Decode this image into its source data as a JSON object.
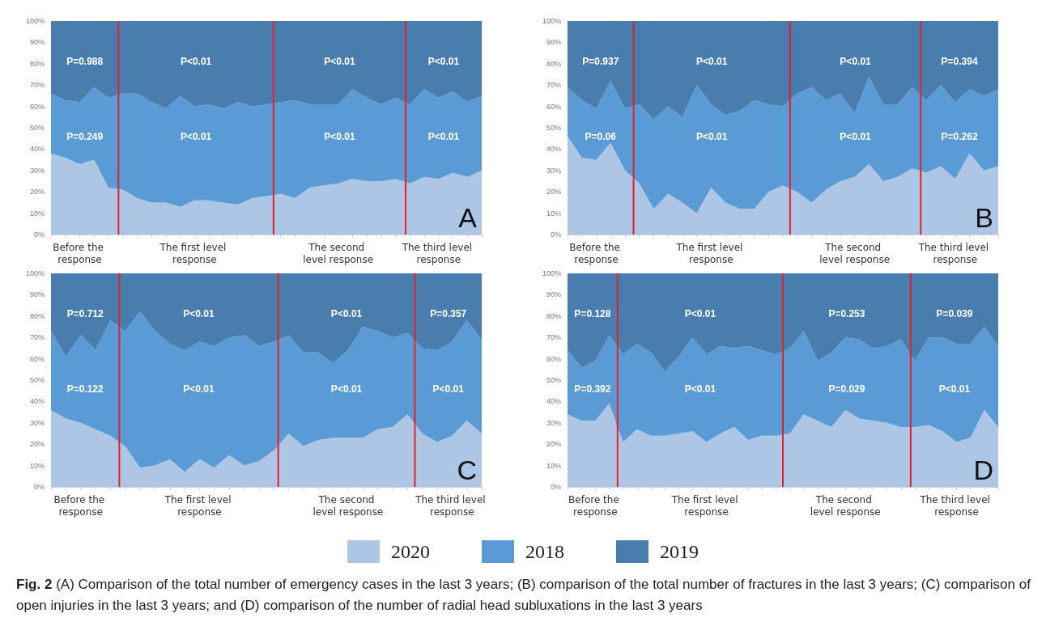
{
  "chart_data": [
    {
      "type": "area",
      "stacked": true,
      "marker": "none",
      "legend": "bottom",
      "categories": [
        null,
        null,
        "Before the response",
        null,
        null,
        null,
        null,
        null,
        null,
        null,
        "The first level response",
        null,
        null,
        null,
        null,
        null,
        null,
        null,
        null,
        null,
        "The second level response",
        null,
        null,
        null,
        null,
        null,
        null,
        "The third level response",
        null,
        null,
        null
      ],
      "ylim": [
        0,
        100
      ],
      "yticks": [
        {
          "value": 0,
          "label": "0%"
        },
        {
          "value": 10,
          "label": "10%"
        },
        {
          "value": 20,
          "label": "20%"
        },
        {
          "value": 30,
          "label": "30%"
        },
        {
          "value": 40,
          "label": "40%"
        },
        {
          "value": 50,
          "label": "50%"
        },
        {
          "value": 60,
          "label": "60%"
        },
        {
          "value": 70,
          "label": "70%"
        },
        {
          "value": 80,
          "label": "80%"
        },
        {
          "value": 90,
          "label": "90%"
        },
        {
          "value": 100,
          "label": "100%"
        }
      ],
      "series": [
        {
          "name": "2020",
          "color": "#aec6e6",
          "values": [
            38,
            36,
            33,
            35,
            22,
            21,
            17,
            15,
            15,
            13,
            16,
            16,
            15,
            14,
            17,
            18,
            19,
            17,
            22,
            23,
            24,
            26,
            25,
            25,
            26,
            24,
            27,
            26,
            29,
            27,
            30
          ]
        },
        {
          "name": "2018",
          "color": "#5b9bd5",
          "values": [
            28,
            27,
            29,
            34,
            42,
            45,
            49,
            47,
            44,
            52,
            44,
            45,
            44,
            48,
            43,
            43,
            43,
            46,
            39,
            38,
            37,
            42,
            39,
            36,
            38,
            37,
            41,
            38,
            38,
            35,
            35
          ]
        },
        {
          "name": "2019",
          "color": "#487dae",
          "values": [
            34,
            37,
            38,
            31,
            36,
            34,
            34,
            38,
            41,
            35,
            40,
            39,
            41,
            38,
            40,
            39,
            38,
            37,
            39,
            39,
            39,
            32,
            36,
            39,
            36,
            39,
            32,
            36,
            33,
            38,
            35
          ]
        }
      ],
      "annotations": [
        "A",
        "P=0.988",
        "P=0.249",
        "P<0.01",
        "P<0.01",
        "P<0.01",
        "P<0.01",
        "P<0.01",
        "P<0.01"
      ]
    },
    {
      "type": "area",
      "stacked": true,
      "marker": "none",
      "legend": "bottom",
      "categories": [
        null,
        null,
        "Before the response",
        null,
        null,
        null,
        null,
        null,
        null,
        null,
        "The first level response",
        null,
        null,
        null,
        null,
        null,
        null,
        null,
        null,
        null,
        "The second level response",
        null,
        null,
        null,
        null,
        null,
        null,
        "The third level response",
        null,
        null,
        null
      ],
      "ylim": [
        0,
        100
      ],
      "yticks": [
        {
          "value": 0,
          "label": "0%"
        },
        {
          "value": 10,
          "label": "10%"
        },
        {
          "value": 20,
          "label": "20%"
        },
        {
          "value": 30,
          "label": "30%"
        },
        {
          "value": 40,
          "label": "40%"
        },
        {
          "value": 50,
          "label": "50%"
        },
        {
          "value": 60,
          "label": "60%"
        },
        {
          "value": 70,
          "label": "70%"
        },
        {
          "value": 80,
          "label": "80%"
        },
        {
          "value": 90,
          "label": "90%"
        },
        {
          "value": 100,
          "label": "100%"
        }
      ],
      "series": [
        {
          "name": "2020",
          "color": "#aec6e6",
          "values": [
            46,
            36,
            35,
            43,
            30,
            24,
            12,
            19,
            15,
            10,
            22,
            15,
            12,
            12,
            20,
            23,
            20,
            15,
            21,
            25,
            27,
            33,
            25,
            27,
            31,
            29,
            32,
            26,
            38,
            30,
            32
          ]
        },
        {
          "name": "2018",
          "color": "#5b9bd5",
          "values": [
            23,
            27,
            24,
            29,
            29,
            37,
            42,
            41,
            40,
            60,
            39,
            41,
            46,
            51,
            41,
            37,
            46,
            54,
            42,
            41,
            30,
            41,
            36,
            34,
            38,
            34,
            38,
            36,
            30,
            35,
            36
          ]
        },
        {
          "name": "2019",
          "color": "#487dae",
          "values": [
            31,
            37,
            41,
            28,
            41,
            39,
            46,
            40,
            45,
            30,
            39,
            44,
            42,
            37,
            39,
            40,
            34,
            31,
            37,
            34,
            43,
            26,
            39,
            39,
            31,
            37,
            30,
            38,
            32,
            35,
            32
          ]
        }
      ],
      "annotations": [
        "B",
        "P=0.937",
        "P=0.06",
        "P<0.01",
        "P<0.01",
        "P<0.01",
        "P<0.01",
        "P=0.394",
        "P=0.262"
      ]
    },
    {
      "type": "area",
      "stacked": true,
      "marker": "none",
      "legend": "bottom",
      "categories": [
        null,
        null,
        "Before the response",
        null,
        null,
        null,
        null,
        null,
        null,
        null,
        "The first level response",
        null,
        null,
        null,
        null,
        null,
        null,
        null,
        null,
        null,
        "The second level response",
        null,
        null,
        null,
        null,
        null,
        null,
        "The third level response",
        null,
        null
      ],
      "ylim": [
        0,
        100
      ],
      "yticks": [
        {
          "value": 0,
          "label": "0%"
        },
        {
          "value": 10,
          "label": "10%"
        },
        {
          "value": 20,
          "label": "20%"
        },
        {
          "value": 30,
          "label": "30%"
        },
        {
          "value": 40,
          "label": "40%"
        },
        {
          "value": 50,
          "label": "50%"
        },
        {
          "value": 60,
          "label": "60%"
        },
        {
          "value": 70,
          "label": "70%"
        },
        {
          "value": 80,
          "label": "80%"
        },
        {
          "value": 90,
          "label": "90%"
        },
        {
          "value": 100,
          "label": "100%"
        }
      ],
      "series": [
        {
          "name": "2020",
          "color": "#aec6e6",
          "values": [
            36,
            32,
            30,
            27,
            24,
            19,
            9,
            10,
            13,
            7,
            13,
            9,
            15,
            10,
            12,
            17,
            25,
            19,
            22,
            23,
            23,
            23,
            27,
            28,
            34,
            25,
            21,
            24,
            31,
            25
          ]
        },
        {
          "name": "2018",
          "color": "#5b9bd5",
          "values": [
            37,
            29,
            41,
            37,
            54,
            54,
            73,
            63,
            54,
            57,
            55,
            57,
            55,
            61,
            54,
            51,
            46,
            44,
            41,
            35,
            41,
            52,
            46,
            42,
            38,
            40,
            43,
            44,
            47,
            44
          ]
        },
        {
          "name": "2019",
          "color": "#487dae",
          "values": [
            27,
            39,
            29,
            36,
            22,
            27,
            18,
            27,
            33,
            36,
            32,
            34,
            30,
            29,
            34,
            32,
            29,
            37,
            37,
            42,
            36,
            25,
            27,
            30,
            28,
            35,
            36,
            32,
            22,
            31
          ]
        }
      ],
      "annotations": [
        "C",
        "P=0.712",
        "P=0.122",
        "P<0.01",
        "P<0.01",
        "P<0.01",
        "P<0.01",
        "P=0.357",
        "P<0.01"
      ]
    },
    {
      "type": "area",
      "stacked": true,
      "marker": "none",
      "legend": "bottom",
      "categories": [
        null,
        null,
        "Before the response",
        null,
        null,
        null,
        null,
        null,
        null,
        null,
        "The first level response",
        null,
        null,
        null,
        null,
        null,
        null,
        null,
        null,
        null,
        "The second level response",
        null,
        null,
        null,
        null,
        null,
        null,
        null,
        "The third level response",
        null,
        null,
        null
      ],
      "ylim": [
        0,
        100
      ],
      "yticks": [
        {
          "value": 0,
          "label": "0%"
        },
        {
          "value": 10,
          "label": "10%"
        },
        {
          "value": 20,
          "label": "20%"
        },
        {
          "value": 30,
          "label": "30%"
        },
        {
          "value": 40,
          "label": "40%"
        },
        {
          "value": 50,
          "label": "50%"
        },
        {
          "value": 60,
          "label": "60%"
        },
        {
          "value": 70,
          "label": "70%"
        },
        {
          "value": 80,
          "label": "80%"
        },
        {
          "value": 90,
          "label": "90%"
        },
        {
          "value": 100,
          "label": "100%"
        }
      ],
      "series": [
        {
          "name": "2020",
          "color": "#aec6e6",
          "values": [
            34,
            31,
            31,
            39,
            21,
            27,
            24,
            24,
            25,
            26,
            21,
            25,
            28,
            22,
            24,
            24,
            25,
            34,
            31,
            28,
            36,
            32,
            31,
            30,
            28,
            28,
            29,
            26,
            21,
            23,
            36,
            28
          ]
        },
        {
          "name": "2018",
          "color": "#5b9bd5",
          "values": [
            30,
            25,
            28,
            32,
            41,
            40,
            39,
            30,
            36,
            44,
            41,
            41,
            37,
            44,
            40,
            38,
            40,
            39,
            28,
            35,
            34,
            37,
            34,
            36,
            41,
            31,
            41,
            44,
            46,
            44,
            39,
            38
          ]
        },
        {
          "name": "2019",
          "color": "#487dae",
          "values": [
            36,
            44,
            41,
            29,
            38,
            33,
            37,
            46,
            39,
            30,
            38,
            34,
            35,
            34,
            36,
            38,
            35,
            27,
            41,
            37,
            30,
            31,
            35,
            34,
            31,
            41,
            30,
            30,
            33,
            33,
            25,
            34
          ]
        }
      ],
      "annotations": [
        "D",
        "P=0.128",
        "P=0.392",
        "P<0.01",
        "P<0.01",
        "P=0.253",
        "P=0.029",
        "P=0.039",
        "P<0.01",
        "Fig. 2",
        "(A) Comparison of the total number of emergency cases in the last 3 years; (B) comparison of the total number of fractures in the last 3 years; (C) comparison of open injuries in the last 3 years; and (D) comparison of the number of radial head subluxations in the last 3 years"
      ]
    }
  ]
}
